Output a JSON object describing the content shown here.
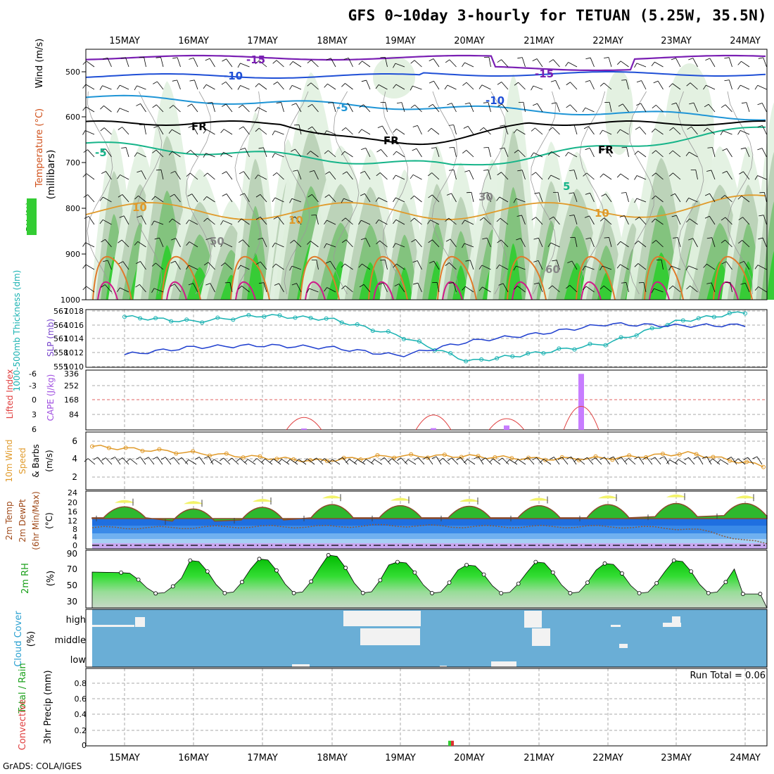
{
  "title": "GFS 0~10day 3-hourly for TETUAN (5.25W, 35.5N)",
  "footer": "GrADS: COLA/IGES",
  "dates": [
    "15MAY",
    "16MAY",
    "17MAY",
    "18MAY",
    "19MAY",
    "20MAY",
    "21MAY",
    "22MAY",
    "23MAY",
    "24MAY"
  ],
  "colors": {
    "grid": "#aaaaaa",
    "frame": "#000000",
    "rh_light": "#e3f1e1",
    "rh_mid": "#b9d1b6",
    "rh_dark": "#7fc27a",
    "rh_green": "#33cc33",
    "cloud": "#6aaed6",
    "snow": "#f2f2f2"
  },
  "panels": {
    "upper": {
      "ylabel": "(millibars)",
      "labels": [
        "Wind (m/s)",
        "Temperature (°C)",
        "RH (%)"
      ],
      "ticks": [
        "500",
        "600",
        "700",
        "800",
        "900",
        "1000"
      ]
    },
    "thickness": {
      "label_left": "1000-500mb Thickness (dm)",
      "label_right": "SLP (mb)",
      "ticks_left": [
        "567",
        "564",
        "561",
        "558",
        "555"
      ],
      "ticks_right": [
        "1018",
        "1016",
        "1014",
        "1012",
        "1010"
      ]
    },
    "cape": {
      "label_left": "Lifted Index",
      "label_right": "CAPE (J/kg)",
      "ticks_left": [
        "-6",
        "-3",
        "0",
        "3",
        "6"
      ],
      "ticks_right": [
        "336",
        "252",
        "168",
        "84"
      ]
    },
    "wind10": {
      "labels": [
        "10m Wind",
        "Speed",
        "& Barbs",
        "(m/s)"
      ],
      "ticks": [
        "6",
        "4",
        "2"
      ]
    },
    "temp2m": {
      "labels": [
        "2m Temp",
        "2m DewPt",
        "(6hr Min/Max)",
        "(°C)"
      ],
      "ticks": [
        "24",
        "20",
        "16",
        "12",
        "8",
        "4",
        "0"
      ]
    },
    "rh2m": {
      "labels": [
        "2m RH",
        "(%)"
      ],
      "ticks": [
        "90",
        "70",
        "50",
        "30"
      ]
    },
    "cloud": {
      "labels": [
        "Cloud Cover",
        "(%)"
      ],
      "ticks": [
        "high",
        "middle",
        "low"
      ]
    },
    "precip": {
      "labels": [
        "Total / Rain",
        "Convective",
        "3hr Precip (mm)"
      ],
      "ticks": [
        "0.8",
        "0.6",
        "0.4",
        "0.2",
        "0"
      ],
      "run_total": "Run Total = 0.06"
    }
  },
  "contour_labels": [
    "-15",
    "-15",
    "-10",
    "-10",
    "-5",
    "FR",
    "FR",
    "FR",
    "-5",
    "5",
    "10",
    "10",
    "30",
    "50",
    "60",
    "10"
  ],
  "chart_data": [
    {
      "type": "line",
      "title": "1000-500mb Thickness / SLP",
      "x": [
        "15MAY",
        "16MAY",
        "17MAY",
        "18MAY",
        "19MAY",
        "20MAY",
        "21MAY",
        "22MAY",
        "23MAY",
        "24MAY"
      ],
      "series": [
        {
          "name": "1000-500mb Thickness (dm)",
          "values": [
            565.5,
            564.5,
            565.8,
            565,
            561.5,
            556.2,
            558,
            560,
            564.5,
            566.5
          ]
        },
        {
          "name": "SLP (mb)",
          "values": [
            1011.2,
            1012.5,
            1012.8,
            1012.4,
            1011,
            1013.5,
            1014.8,
            1016.5,
            1016.2,
            1016.3
          ]
        }
      ],
      "ylim": [
        555,
        567
      ]
    },
    {
      "type": "bar",
      "title": "CAPE / Lifted Index",
      "x": [
        "17.7MAY",
        "19.5MAY",
        "20.5MAY",
        "21.6MAY"
      ],
      "series": [
        {
          "name": "CAPE (J/kg)",
          "values": [
            8,
            10,
            25,
            315
          ]
        },
        {
          "name": "Lifted Index",
          "values": [
            2.5,
            1.5,
            3,
            -2
          ]
        }
      ],
      "ylim": [
        0,
        336
      ]
    },
    {
      "type": "line",
      "title": "10m Wind Speed",
      "x": [
        "15MAY",
        "16MAY",
        "17MAY",
        "18MAY",
        "19MAY",
        "20MAY",
        "21MAY",
        "22MAY",
        "23MAY",
        "24MAY"
      ],
      "series": [
        {
          "name": "10m Wind Speed (m/s)",
          "values": [
            5.5,
            5,
            4.5,
            4,
            4.5,
            4.5,
            4.2,
            4.3,
            4.8,
            3.5
          ]
        }
      ],
      "ylim": [
        1,
        7
      ]
    },
    {
      "type": "area",
      "title": "2m Temp / DewPt",
      "x": [
        "15MAY",
        "16MAY",
        "17MAY",
        "18MAY",
        "19MAY",
        "20MAY",
        "21MAY",
        "22MAY",
        "23MAY",
        "24MAY"
      ],
      "series": [
        {
          "name": "2m Temp max (°C)",
          "values": [
            21,
            20.5,
            21.5,
            23,
            22,
            21.5,
            22,
            23,
            23.5,
            23
          ]
        },
        {
          "name": "2m Temp min (°C)",
          "values": [
            13,
            11.5,
            12,
            13,
            13,
            13,
            13,
            13,
            13.5,
            14
          ]
        },
        {
          "name": "2m DewPt (°C)",
          "values": [
            8.5,
            8.5,
            9,
            9,
            9.5,
            9,
            9,
            9,
            8,
            1
          ]
        }
      ],
      "ylim": [
        -1,
        25
      ]
    },
    {
      "type": "area",
      "title": "2m RH",
      "x": [
        "15MAY",
        "16MAY",
        "17MAY",
        "18MAY",
        "19MAY",
        "20MAY",
        "21MAY",
        "22MAY",
        "23MAY",
        "24MAY"
      ],
      "series": [
        {
          "name": "2m RH (%)",
          "values": [
            68,
            84,
            86,
            91,
            82,
            78,
            82,
            80,
            84,
            40
          ]
        }
      ],
      "ylim": [
        22,
        96
      ]
    },
    {
      "type": "bar",
      "title": "3hr Precip",
      "x": [
        "19.7MAY"
      ],
      "series": [
        {
          "name": "Total / Rain",
          "values": [
            0.06
          ]
        }
      ],
      "ylim": [
        0,
        1
      ]
    }
  ]
}
